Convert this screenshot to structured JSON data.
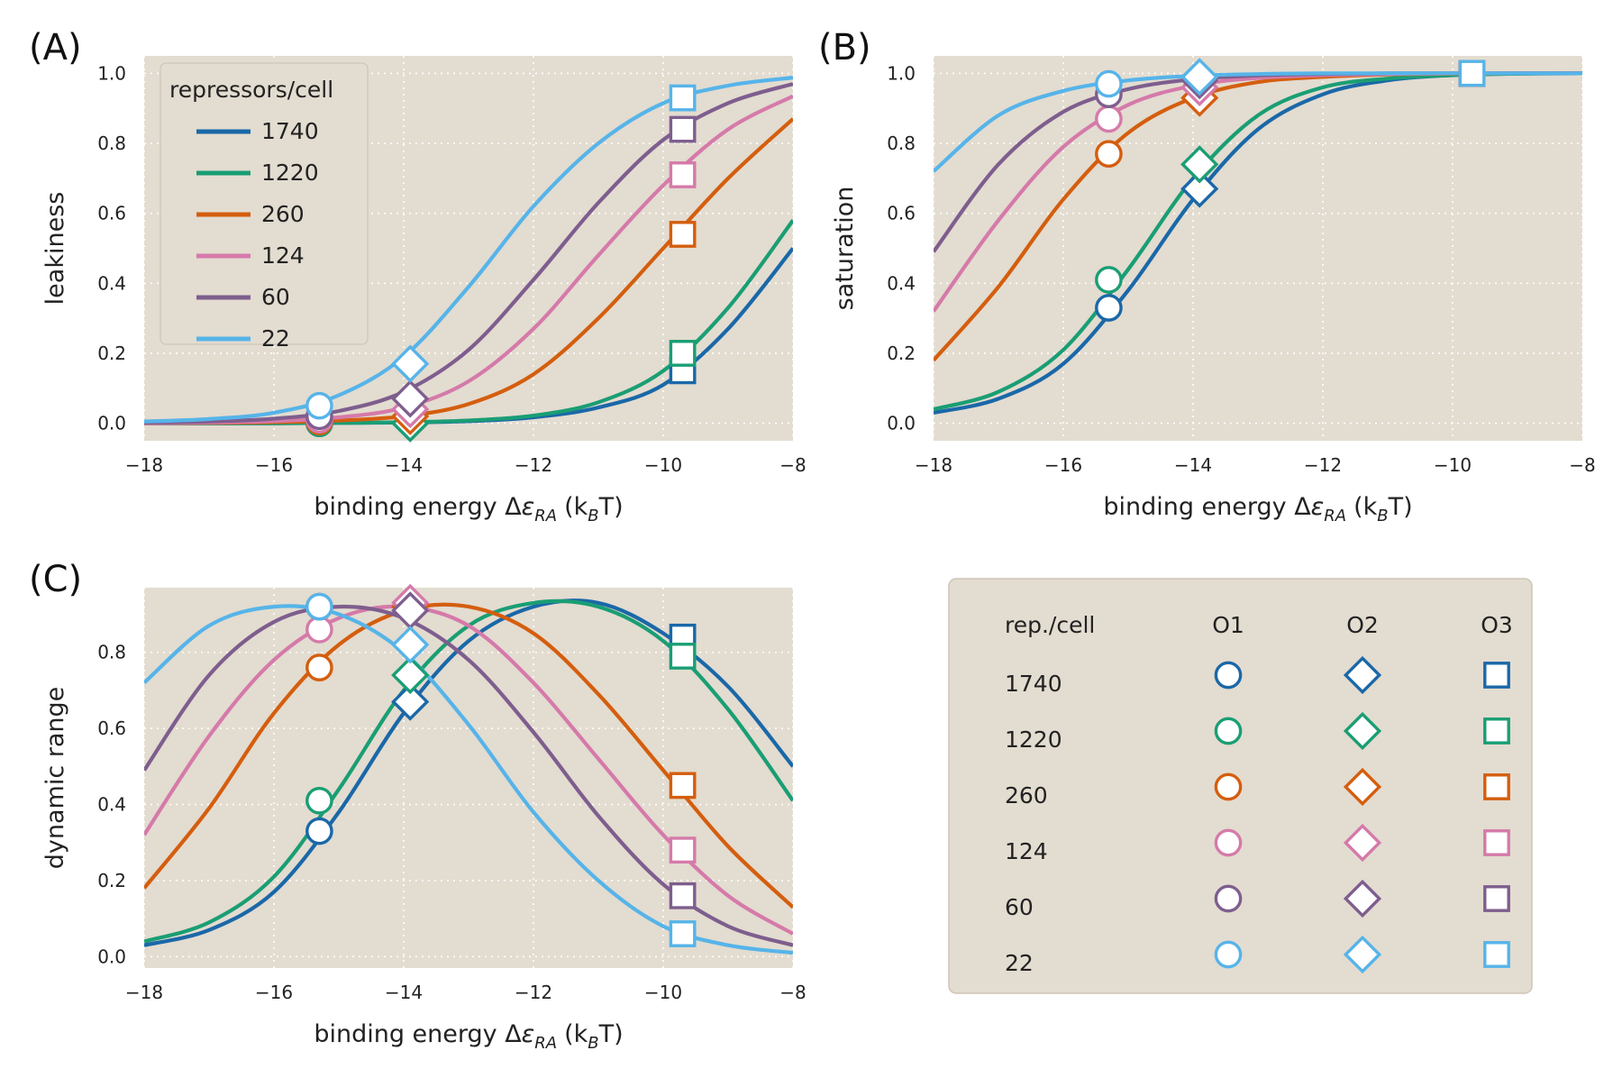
{
  "colors": {
    "panel_bg": "#e3dcd0",
    "grid": "#ffffff",
    "series": [
      "#1a68a8",
      "#1a9e74",
      "#d45e0e",
      "#d57aaa",
      "#7e5e8e",
      "#56b4e9"
    ]
  },
  "chart_data": [
    {
      "id": "A",
      "panel_label": "(A)",
      "type": "line",
      "xlabel_main": "binding energy Δ",
      "xlabel_eps": "ε",
      "xlabel_sub": "RA",
      "xlabel_units": "(k",
      "xlabel_units_sub": "B",
      "xlabel_units_end": "T)",
      "ylabel": "leakiness",
      "xlim": [
        -18,
        -8
      ],
      "ylim": [
        -0.05,
        1.05
      ],
      "xticks": [
        "−18",
        "−16",
        "−14",
        "−12",
        "−10",
        "−8"
      ],
      "yticks": [
        "0.0",
        "0.2",
        "0.4",
        "0.6",
        "0.8",
        "1.0"
      ],
      "grid": true,
      "legend": {
        "title": "repressors/cell",
        "placement": "top-left",
        "entries": [
          "1740",
          "1220",
          "260",
          "124",
          "60",
          "22"
        ]
      },
      "series": [
        {
          "name": "1740",
          "x": [
            -18,
            -17,
            -16,
            -15,
            -14,
            -13,
            -12,
            -11,
            -10,
            -9,
            -8
          ],
          "y": [
            0.0,
            0.0,
            0.0,
            0.001,
            0.002,
            0.006,
            0.017,
            0.045,
            0.11,
            0.27,
            0.5
          ]
        },
        {
          "name": "1220",
          "x": [
            -18,
            -17,
            -16,
            -15,
            -14,
            -13,
            -12,
            -11,
            -10,
            -9,
            -8
          ],
          "y": [
            0.0,
            0.0,
            0.0,
            0.001,
            0.003,
            0.008,
            0.022,
            0.06,
            0.15,
            0.33,
            0.58
          ]
        },
        {
          "name": "260",
          "x": [
            -18,
            -17,
            -16,
            -15,
            -14,
            -13,
            -12,
            -11,
            -10,
            -9,
            -8
          ],
          "y": [
            0.0,
            0.001,
            0.003,
            0.008,
            0.02,
            0.055,
            0.14,
            0.3,
            0.5,
            0.7,
            0.87
          ]
        },
        {
          "name": "124",
          "x": [
            -18,
            -17,
            -16,
            -15,
            -14,
            -13,
            -12,
            -11,
            -10,
            -9,
            -8
          ],
          "y": [
            0.0,
            0.002,
            0.006,
            0.017,
            0.045,
            0.12,
            0.27,
            0.48,
            0.68,
            0.84,
            0.935
          ]
        },
        {
          "name": "60",
          "x": [
            -18,
            -17,
            -16,
            -15,
            -14,
            -13,
            -12,
            -11,
            -10,
            -9,
            -8
          ],
          "y": [
            0.002,
            0.005,
            0.013,
            0.035,
            0.09,
            0.21,
            0.41,
            0.63,
            0.81,
            0.915,
            0.97
          ]
        },
        {
          "name": "22",
          "x": [
            -18,
            -17,
            -16,
            -15,
            -14,
            -13,
            -12,
            -11,
            -10,
            -9,
            -8
          ],
          "y": [
            0.005,
            0.012,
            0.03,
            0.08,
            0.19,
            0.39,
            0.62,
            0.8,
            0.915,
            0.965,
            0.988
          ]
        }
      ],
      "markers": [
        {
          "series": "1740",
          "x": [
            -15.3,
            -13.9,
            -9.7
          ],
          "y": [
            0.0,
            0.0,
            0.15
          ]
        },
        {
          "series": "1220",
          "x": [
            -15.3,
            -13.9,
            -9.7
          ],
          "y": [
            0.0,
            0.0,
            0.2
          ]
        },
        {
          "series": "260",
          "x": [
            -15.3,
            -13.9,
            -9.7
          ],
          "y": [
            0.005,
            0.02,
            0.54
          ]
        },
        {
          "series": "124",
          "x": [
            -15.3,
            -13.9,
            -9.7
          ],
          "y": [
            0.01,
            0.04,
            0.71
          ]
        },
        {
          "series": "60",
          "x": [
            -15.3,
            -13.9,
            -9.7
          ],
          "y": [
            0.02,
            0.07,
            0.84
          ]
        },
        {
          "series": "22",
          "x": [
            -15.3,
            -13.9,
            -9.7
          ],
          "y": [
            0.05,
            0.17,
            0.93
          ]
        }
      ],
      "marker_shapes": [
        "circle",
        "diamond",
        "square"
      ]
    },
    {
      "id": "B",
      "panel_label": "(B)",
      "type": "line",
      "xlabel_main": "binding energy Δ",
      "xlabel_eps": "ε",
      "xlabel_sub": "RA",
      "xlabel_units": "(k",
      "xlabel_units_sub": "B",
      "xlabel_units_end": "T)",
      "ylabel": "saturation",
      "xlim": [
        -18,
        -8
      ],
      "ylim": [
        -0.05,
        1.05
      ],
      "xticks": [
        "−18",
        "−16",
        "−14",
        "−12",
        "−10",
        "−8"
      ],
      "yticks": [
        "0.0",
        "0.2",
        "0.4",
        "0.6",
        "0.8",
        "1.0"
      ],
      "grid": true,
      "series": [
        {
          "name": "1740",
          "x": [
            -18,
            -17,
            -16,
            -15,
            -14,
            -13,
            -12,
            -11,
            -10,
            -9,
            -8
          ],
          "y": [
            0.03,
            0.07,
            0.17,
            0.38,
            0.64,
            0.84,
            0.94,
            0.98,
            0.995,
            0.999,
            1.0
          ]
        },
        {
          "name": "1220",
          "x": [
            -18,
            -17,
            -16,
            -15,
            -14,
            -13,
            -12,
            -11,
            -10,
            -9,
            -8
          ],
          "y": [
            0.04,
            0.09,
            0.21,
            0.44,
            0.7,
            0.88,
            0.96,
            0.985,
            0.995,
            0.999,
            1.0
          ]
        },
        {
          "name": "260",
          "x": [
            -18,
            -17,
            -16,
            -15,
            -14,
            -13,
            -12,
            -11,
            -10,
            -9,
            -8
          ],
          "y": [
            0.18,
            0.39,
            0.64,
            0.83,
            0.93,
            0.975,
            0.99,
            0.997,
            0.999,
            1.0,
            1.0
          ]
        },
        {
          "name": "124",
          "x": [
            -18,
            -17,
            -16,
            -15,
            -14,
            -13,
            -12,
            -11,
            -10,
            -9,
            -8
          ],
          "y": [
            0.32,
            0.58,
            0.79,
            0.91,
            0.965,
            0.987,
            0.995,
            0.998,
            1.0,
            1.0,
            1.0
          ]
        },
        {
          "name": "60",
          "x": [
            -18,
            -17,
            -16,
            -15,
            -14,
            -13,
            -12,
            -11,
            -10,
            -9,
            -8
          ],
          "y": [
            0.49,
            0.74,
            0.89,
            0.955,
            0.983,
            0.994,
            0.998,
            1.0,
            1.0,
            1.0,
            1.0
          ]
        },
        {
          "name": "22",
          "x": [
            -18,
            -17,
            -16,
            -15,
            -14,
            -13,
            -12,
            -11,
            -10,
            -9,
            -8
          ],
          "y": [
            0.72,
            0.88,
            0.95,
            0.98,
            0.993,
            0.998,
            1.0,
            1.0,
            1.0,
            1.0,
            1.0
          ]
        }
      ],
      "markers": [
        {
          "series": "1740",
          "x": [
            -15.3,
            -13.9,
            -9.7
          ],
          "y": [
            0.33,
            0.67,
            1.0
          ]
        },
        {
          "series": "1220",
          "x": [
            -15.3,
            -13.9,
            -9.7
          ],
          "y": [
            0.41,
            0.74,
            1.0
          ]
        },
        {
          "series": "260",
          "x": [
            -15.3,
            -13.9,
            -9.7
          ],
          "y": [
            0.77,
            0.93,
            1.0
          ]
        },
        {
          "series": "124",
          "x": [
            -15.3,
            -13.9,
            -9.7
          ],
          "y": [
            0.87,
            0.96,
            1.0
          ]
        },
        {
          "series": "60",
          "x": [
            -15.3,
            -13.9,
            -9.7
          ],
          "y": [
            0.94,
            0.98,
            1.0
          ]
        },
        {
          "series": "22",
          "x": [
            -15.3,
            -13.9,
            -9.7
          ],
          "y": [
            0.97,
            0.99,
            1.0
          ]
        }
      ],
      "marker_shapes": [
        "circle",
        "diamond",
        "square"
      ]
    },
    {
      "id": "C",
      "panel_label": "(C)",
      "type": "line",
      "xlabel_main": "binding energy Δ",
      "xlabel_eps": "ε",
      "xlabel_sub": "RA",
      "xlabel_units": "(k",
      "xlabel_units_sub": "B",
      "xlabel_units_end": "T)",
      "ylabel": "dynamic range",
      "xlim": [
        -18,
        -8
      ],
      "ylim": [
        -0.03,
        0.97
      ],
      "xticks": [
        "−18",
        "−16",
        "−14",
        "−12",
        "−10",
        "−8"
      ],
      "yticks": [
        "0.0",
        "0.2",
        "0.4",
        "0.6",
        "0.8"
      ],
      "grid": true,
      "series": [
        {
          "name": "1740",
          "x": [
            -18,
            -17,
            -16,
            -15,
            -14,
            -13,
            -12,
            -11,
            -10,
            -9,
            -8
          ],
          "y": [
            0.03,
            0.07,
            0.17,
            0.38,
            0.64,
            0.83,
            0.92,
            0.93,
            0.85,
            0.71,
            0.5
          ]
        },
        {
          "name": "1220",
          "x": [
            -18,
            -17,
            -16,
            -15,
            -14,
            -13,
            -12,
            -11,
            -10,
            -9,
            -8
          ],
          "y": [
            0.04,
            0.09,
            0.21,
            0.44,
            0.7,
            0.87,
            0.93,
            0.92,
            0.83,
            0.65,
            0.41
          ]
        },
        {
          "name": "260",
          "x": [
            -18,
            -17,
            -16,
            -15,
            -14,
            -13,
            -12,
            -11,
            -10,
            -9,
            -8
          ],
          "y": [
            0.18,
            0.39,
            0.64,
            0.82,
            0.91,
            0.92,
            0.85,
            0.69,
            0.49,
            0.29,
            0.13
          ]
        },
        {
          "name": "124",
          "x": [
            -18,
            -17,
            -16,
            -15,
            -14,
            -13,
            -12,
            -11,
            -10,
            -9,
            -8
          ],
          "y": [
            0.32,
            0.58,
            0.78,
            0.89,
            0.92,
            0.87,
            0.72,
            0.52,
            0.32,
            0.16,
            0.06
          ]
        },
        {
          "name": "60",
          "x": [
            -18,
            -17,
            -16,
            -15,
            -14,
            -13,
            -12,
            -11,
            -10,
            -9,
            -8
          ],
          "y": [
            0.49,
            0.74,
            0.88,
            0.92,
            0.89,
            0.78,
            0.59,
            0.37,
            0.19,
            0.08,
            0.03
          ]
        },
        {
          "name": "22",
          "x": [
            -18,
            -17,
            -16,
            -15,
            -14,
            -13,
            -12,
            -11,
            -10,
            -9,
            -8
          ],
          "y": [
            0.72,
            0.87,
            0.92,
            0.9,
            0.8,
            0.61,
            0.38,
            0.2,
            0.08,
            0.03,
            0.01
          ]
        }
      ],
      "markers": [
        {
          "series": "1740",
          "x": [
            -15.3,
            -13.9,
            -9.7
          ],
          "y": [
            0.33,
            0.67,
            0.84
          ]
        },
        {
          "series": "1220",
          "x": [
            -15.3,
            -13.9,
            -9.7
          ],
          "y": [
            0.41,
            0.74,
            0.79
          ]
        },
        {
          "series": "260",
          "x": [
            -15.3,
            -13.9,
            -9.7
          ],
          "y": [
            0.76,
            0.92,
            0.45
          ]
        },
        {
          "series": "124",
          "x": [
            -15.3,
            -13.9,
            -9.7
          ],
          "y": [
            0.86,
            0.93,
            0.28
          ]
        },
        {
          "series": "60",
          "x": [
            -15.3,
            -13.9,
            -9.7
          ],
          "y": [
            0.92,
            0.91,
            0.16
          ]
        },
        {
          "series": "22",
          "x": [
            -15.3,
            -13.9,
            -9.7
          ],
          "y": [
            0.92,
            0.82,
            0.06
          ]
        }
      ],
      "marker_shapes": [
        "circle",
        "diamond",
        "square"
      ]
    }
  ],
  "marker_legend": {
    "header_label": "rep./cell",
    "columns": [
      "O1",
      "O2",
      "O3"
    ],
    "column_shapes": [
      "circle",
      "diamond",
      "square"
    ],
    "rows": [
      "1740",
      "1220",
      "260",
      "124",
      "60",
      "22"
    ]
  }
}
